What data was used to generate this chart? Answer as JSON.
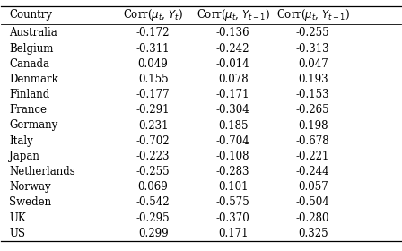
{
  "header_math": [
    "Country",
    "Corr($\\mu_t$, $Y_t$)",
    "Corr($\\mu_t$, $Y_{t-1}$)",
    "Corr($\\mu_t$, $Y_{t+1}$)"
  ],
  "countries": [
    "Australia",
    "Belgium",
    "Canada",
    "Denmark",
    "Finland",
    "France",
    "Germany",
    "Italy",
    "Japan",
    "Netherlands",
    "Norway",
    "Sweden",
    "UK",
    "US"
  ],
  "col1": [
    -0.172,
    -0.311,
    0.049,
    0.155,
    -0.177,
    -0.291,
    0.231,
    -0.702,
    -0.223,
    -0.255,
    0.069,
    -0.542,
    -0.295,
    0.299
  ],
  "col2": [
    -0.136,
    -0.242,
    -0.014,
    0.078,
    -0.171,
    -0.304,
    0.185,
    -0.704,
    -0.108,
    -0.283,
    0.101,
    -0.575,
    -0.37,
    0.171
  ],
  "col3": [
    -0.255,
    -0.313,
    0.047,
    0.193,
    -0.153,
    -0.265,
    0.198,
    -0.678,
    -0.221,
    -0.244,
    0.057,
    -0.504,
    -0.28,
    0.325
  ],
  "header_fontsize": 8.5,
  "cell_fontsize": 8.5,
  "figsize": [
    4.48,
    2.8
  ],
  "dpi": 100
}
